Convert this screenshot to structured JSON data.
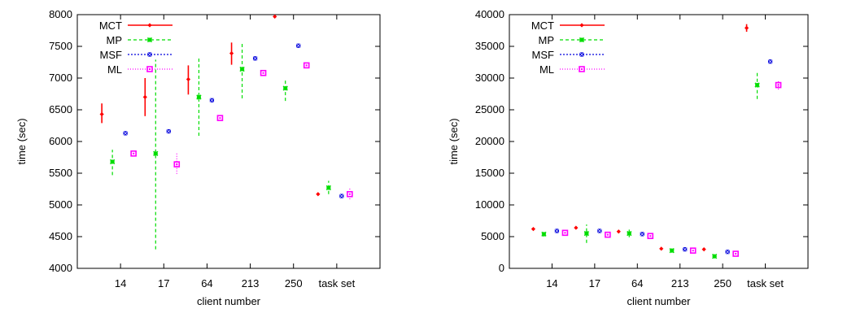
{
  "colors": {
    "MCT": "#ff0000",
    "MP": "#00dd00",
    "MSF": "#0000dd",
    "ML": "#ff00ff"
  },
  "chart_data": [
    {
      "type": "scatter",
      "title": "",
      "xlabel": "client number",
      "ylabel": "time (sec)",
      "categories": [
        "14",
        "17",
        "64",
        "213",
        "250",
        "task set"
      ],
      "ylim": [
        4000,
        8000
      ],
      "yticks": [
        4000,
        4500,
        5000,
        5500,
        6000,
        6500,
        7000,
        7500,
        8000
      ],
      "legend_position": "top-left",
      "grid": false,
      "series": [
        {
          "name": "MCT",
          "values": [
            6430,
            6700,
            6980,
            7390,
            7970,
            5170
          ],
          "low": [
            6290,
            6400,
            6740,
            7210,
            null,
            null
          ],
          "high": [
            6600,
            7000,
            7200,
            7560,
            null,
            null
          ]
        },
        {
          "name": "MP",
          "values": [
            5680,
            5810,
            6700,
            7140,
            6840,
            5270
          ],
          "low": [
            5470,
            4300,
            6090,
            6680,
            6640,
            5170
          ],
          "high": [
            5870,
            7290,
            7330,
            7540,
            6980,
            5380
          ]
        },
        {
          "name": "MSF",
          "values": [
            6130,
            6160,
            6650,
            7310,
            7510,
            5140
          ],
          "low": [
            null,
            null,
            null,
            null,
            null,
            null
          ],
          "high": [
            null,
            null,
            null,
            null,
            null,
            null
          ]
        },
        {
          "name": "ML",
          "values": [
            5810,
            5640,
            6370,
            7080,
            7200,
            5170
          ],
          "low": [
            null,
            5490,
            null,
            null,
            null,
            5090
          ],
          "high": [
            null,
            5820,
            null,
            null,
            null,
            5260
          ]
        }
      ]
    },
    {
      "type": "scatter",
      "title": "",
      "xlabel": "client number",
      "ylabel": "time (sec)",
      "categories": [
        "14",
        "17",
        "64",
        "213",
        "250",
        "task set"
      ],
      "ylim": [
        0,
        40000
      ],
      "yticks": [
        0,
        5000,
        10000,
        15000,
        20000,
        25000,
        30000,
        35000,
        40000
      ],
      "legend_position": "top-left",
      "grid": false,
      "series": [
        {
          "name": "MCT",
          "values": [
            6200,
            6400,
            5800,
            3100,
            3000,
            37900
          ],
          "low": [
            null,
            null,
            null,
            null,
            null,
            37300
          ],
          "high": [
            null,
            null,
            null,
            null,
            null,
            38500
          ]
        },
        {
          "name": "MP",
          "values": [
            5400,
            5500,
            5500,
            2800,
            1900,
            28900
          ],
          "low": [
            5000,
            4000,
            4900,
            2500,
            null,
            26700
          ],
          "high": [
            5800,
            6900,
            6100,
            3200,
            null,
            30800
          ]
        },
        {
          "name": "MSF",
          "values": [
            5900,
            5900,
            5400,
            3000,
            2600,
            32600
          ],
          "low": [
            null,
            null,
            null,
            null,
            null,
            null
          ],
          "high": [
            null,
            null,
            null,
            null,
            null,
            null
          ]
        },
        {
          "name": "ML",
          "values": [
            5600,
            5300,
            5100,
            2800,
            2300,
            28900
          ],
          "low": [
            null,
            null,
            null,
            null,
            null,
            28200
          ],
          "high": [
            null,
            null,
            null,
            null,
            null,
            29600
          ]
        }
      ]
    }
  ]
}
